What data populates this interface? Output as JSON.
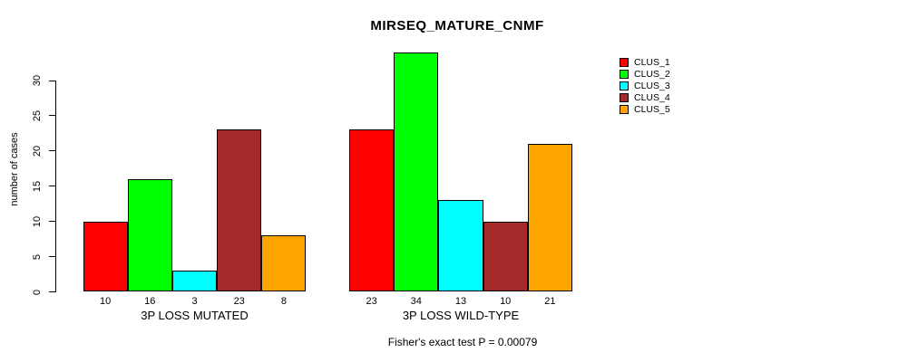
{
  "title": "MIRSEQ_MATURE_CNMF",
  "chart_data": {
    "type": "bar",
    "title": "MIRSEQ_MATURE_CNMF",
    "xlabel": "",
    "ylabel": "number of cases",
    "categories": [
      "3P LOSS MUTATED",
      "3P LOSS WILD-TYPE"
    ],
    "series": [
      {
        "name": "CLUS_1",
        "color": "#FF0000",
        "values": [
          10,
          23
        ]
      },
      {
        "name": "CLUS_2",
        "color": "#00FF00",
        "values": [
          16,
          34
        ]
      },
      {
        "name": "CLUS_3",
        "color": "#00FFFF",
        "values": [
          3,
          13
        ]
      },
      {
        "name": "CLUS_4",
        "color": "#A52A2A",
        "values": [
          23,
          10
        ]
      },
      {
        "name": "CLUS_5",
        "color": "#FFA500",
        "values": [
          8,
          21
        ]
      }
    ],
    "bar_value_labels": [
      [
        10,
        16,
        3,
        23,
        8
      ],
      [
        23,
        34,
        13,
        10,
        21
      ]
    ],
    "yticks": [
      0,
      5,
      10,
      15,
      20,
      25,
      30
    ],
    "ylim": [
      0,
      34
    ],
    "grid": false,
    "background": "#FFFFFF",
    "legend_position": "right",
    "legend_entries": [
      "CLUS_1",
      "CLUS_2",
      "CLUS_3",
      "CLUS_4",
      "CLUS_5"
    ],
    "annotation": "Fisher's exact test P = 0.00079"
  }
}
